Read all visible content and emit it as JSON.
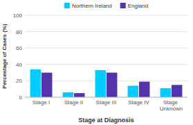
{
  "chart_data": {
    "type": "bar",
    "categories": [
      "Stage I",
      "Stage II",
      "Stage III",
      "Stage IV",
      "Stage Unknown"
    ],
    "series": [
      {
        "name": "Northern Ireland",
        "color": "#00ccff",
        "values": [
          34,
          6,
          33,
          14,
          11
        ]
      },
      {
        "name": "England",
        "color": "#5533aa",
        "values": [
          30,
          5,
          30,
          19,
          15
        ]
      }
    ],
    "xlabel": "Stage at Diagnosis",
    "ylabel": "Percentage of Cases (%)",
    "ylim": [
      0,
      100
    ],
    "yticks": [
      0,
      20,
      40,
      60,
      80,
      100
    ],
    "grid": true,
    "legend": "top"
  }
}
